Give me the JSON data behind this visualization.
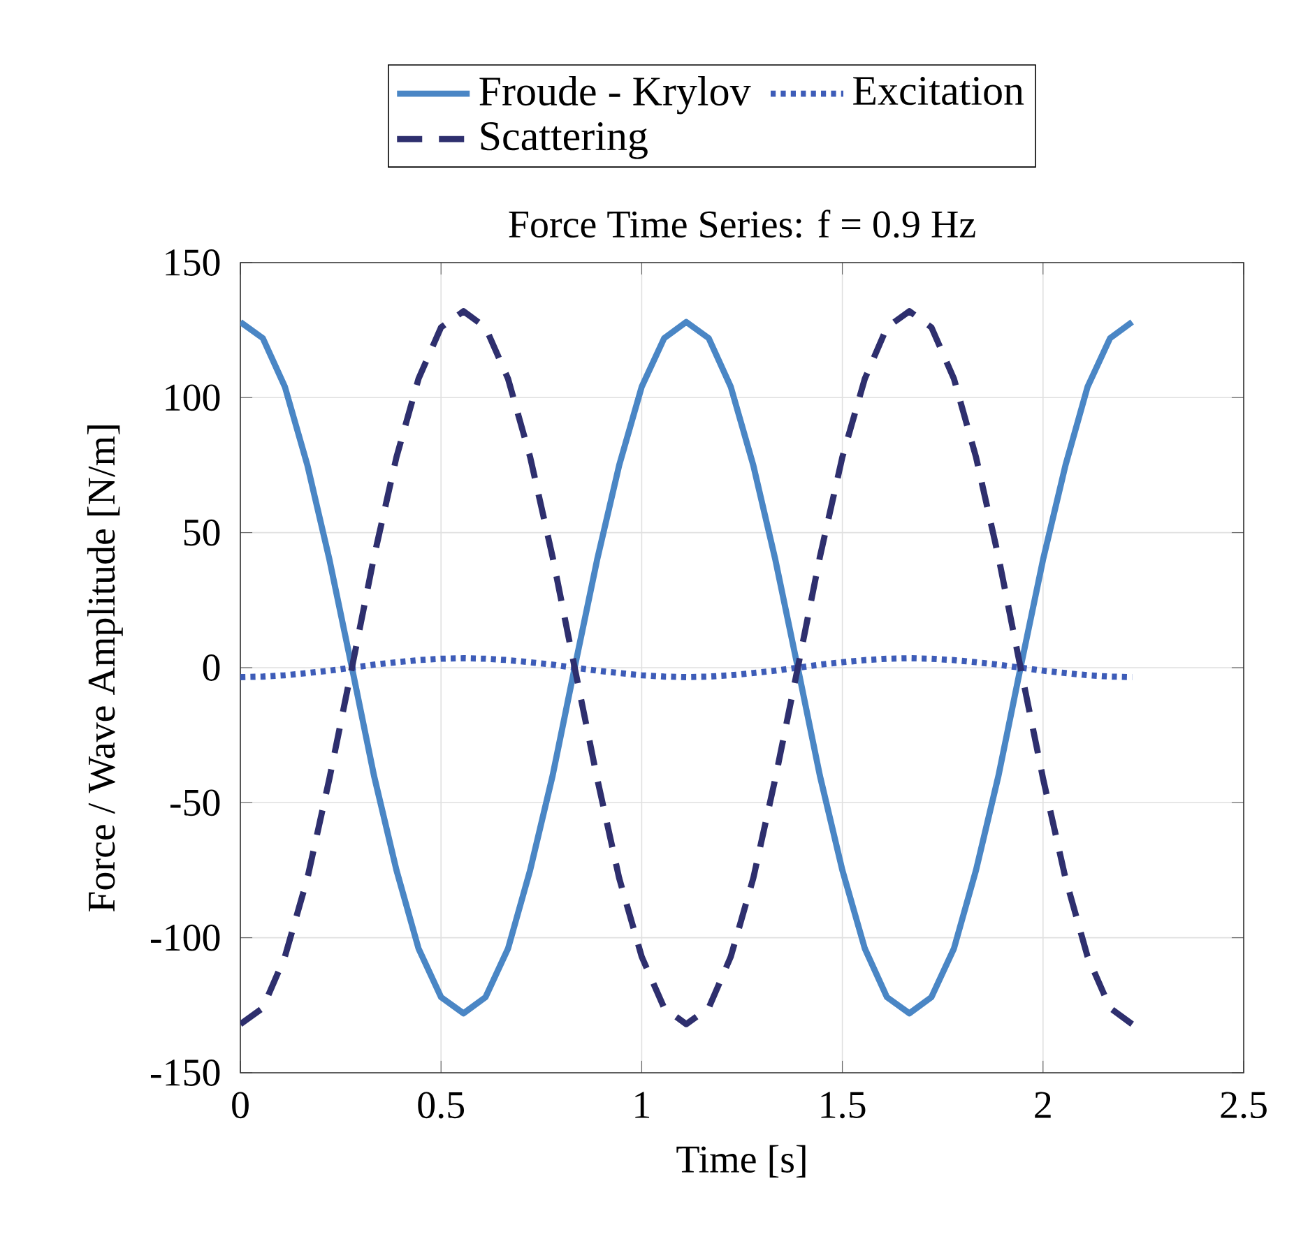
{
  "chart_data": {
    "type": "line",
    "title": "Force Time Series: f = 0.9 Hz",
    "xlabel": "Time [s]",
    "ylabel": "Force / Wave Amplitude [N/m]",
    "x": [
      0,
      0.056,
      0.111,
      0.167,
      0.222,
      0.278,
      0.333,
      0.389,
      0.444,
      0.5,
      0.556,
      0.611,
      0.667,
      0.722,
      0.778,
      0.833,
      0.889,
      0.944,
      1.0,
      1.056,
      1.111,
      1.167,
      1.222,
      1.278,
      1.333,
      1.389,
      1.444,
      1.5,
      1.556,
      1.611,
      1.667,
      1.722,
      1.778,
      1.833,
      1.889,
      1.944,
      2.0,
      2.056,
      2.111,
      2.167,
      2.222
    ],
    "series": [
      {
        "name": "Froude - Krylov",
        "color": "#4a86c5",
        "line_style": "solid",
        "values": [
          128,
          122,
          104,
          75,
          40,
          0,
          -40,
          -75,
          -104,
          -122,
          -128,
          -122,
          -104,
          -75,
          -40,
          0,
          40,
          75,
          104,
          122,
          128,
          122,
          104,
          75,
          40,
          0,
          -40,
          -75,
          -104,
          -122,
          -128,
          -122,
          -104,
          -75,
          -40,
          0,
          40,
          75,
          104,
          122,
          128
        ]
      },
      {
        "name": "Excitation",
        "color": "#3d5cb8",
        "line_style": "dotted",
        "values": [
          -3.5,
          -3.3,
          -2.8,
          -2,
          -1.1,
          0,
          1.1,
          2,
          2.8,
          3.3,
          3.5,
          3.3,
          2.8,
          2,
          1.1,
          0,
          -1.1,
          -2,
          -2.8,
          -3.3,
          -3.5,
          -3.3,
          -2.8,
          -2,
          -1.1,
          0,
          1.1,
          2,
          2.8,
          3.3,
          3.5,
          3.3,
          2.8,
          2,
          1.1,
          0,
          -1.1,
          -2,
          -2.8,
          -3.3,
          -3.5
        ]
      },
      {
        "name": "Scattering",
        "color": "#2e2f6e",
        "line_style": "dashed",
        "values": [
          -132,
          -126,
          -107,
          -78,
          -41,
          0,
          41,
          78,
          107,
          126,
          132,
          126,
          107,
          78,
          41,
          0,
          -41,
          -78,
          -107,
          -126,
          -132,
          -126,
          -107,
          -78,
          -41,
          0,
          41,
          78,
          107,
          126,
          132,
          126,
          107,
          78,
          41,
          0,
          -41,
          -78,
          -107,
          -126,
          -132
        ]
      }
    ],
    "xlim": [
      0,
      2.5
    ],
    "ylim": [
      -150,
      150
    ],
    "xticks": [
      0,
      0.5,
      1,
      1.5,
      2,
      2.5
    ],
    "yticks": [
      -150,
      -100,
      -50,
      0,
      50,
      100,
      150
    ],
    "grid": true,
    "legend": "top",
    "marker": "none"
  }
}
